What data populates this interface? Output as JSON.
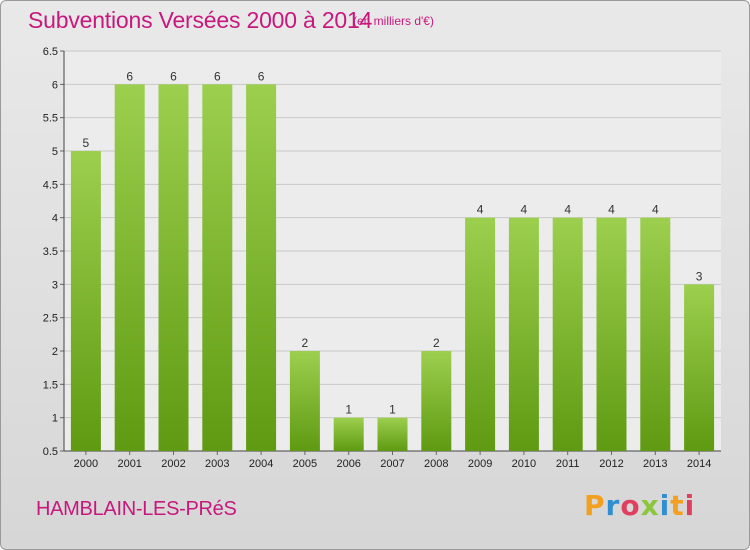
{
  "header": {
    "title": "Subventions Versées 2000 à 2014",
    "subtitle": "(en milliers d'€)"
  },
  "footer": {
    "location": "HAMBLAIN-LES-PRéS",
    "logo_text": "Proxiti"
  },
  "colors": {
    "accent": "#c8187d",
    "bar_top": "#9ccf4e",
    "bar_bottom": "#5f9a12",
    "logo_letters": [
      "#f2a01e",
      "#2f8fd0",
      "#e04060",
      "#8cc63f",
      "#2f8fd0",
      "#f2a01e",
      "#e04060"
    ]
  },
  "chart_data": {
    "type": "bar",
    "categories": [
      "2000",
      "2001",
      "2002",
      "2003",
      "2004",
      "2005",
      "2006",
      "2007",
      "2008",
      "2009",
      "2010",
      "2011",
      "2012",
      "2013",
      "2014"
    ],
    "values": [
      5,
      6,
      6,
      6,
      6,
      2,
      1,
      1,
      2,
      4,
      4,
      4,
      4,
      4,
      3
    ],
    "data_labels": [
      "5",
      "6",
      "6",
      "6",
      "6",
      "2",
      "1",
      "1",
      "2",
      "4",
      "4",
      "4",
      "4",
      "4",
      "3"
    ],
    "yticks": [
      "0.5",
      "1",
      "1.5",
      "2",
      "2.5",
      "3",
      "3.5",
      "4",
      "4.5",
      "5",
      "5.5",
      "6",
      "6.5"
    ],
    "ylim": [
      0.5,
      6.5
    ],
    "grid": true,
    "legend": "none"
  }
}
